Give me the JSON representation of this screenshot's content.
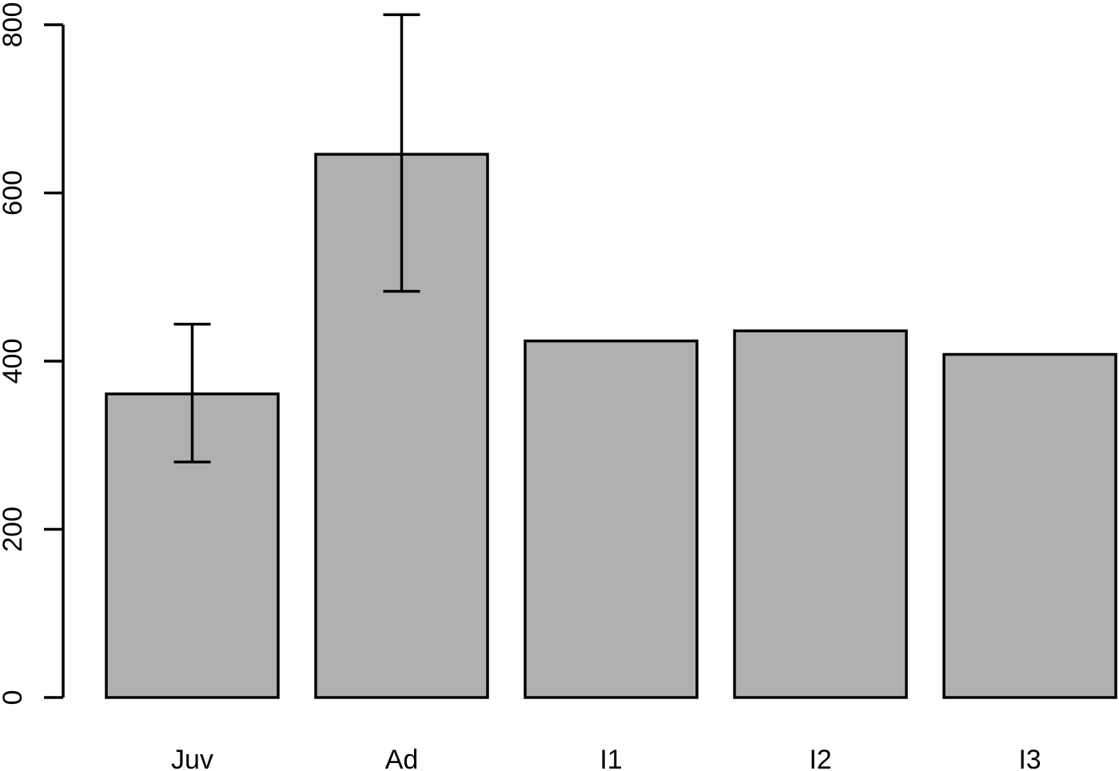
{
  "chart_data": {
    "type": "bar",
    "title": "",
    "xlabel": "",
    "ylabel": "",
    "categories": [
      "Juv",
      "Ad",
      "I1",
      "I2",
      "I3"
    ],
    "values": [
      361,
      646,
      424,
      436,
      408
    ],
    "error_bars": [
      {
        "category": "Juv",
        "lower": 280,
        "upper": 444
      },
      {
        "category": "Ad",
        "lower": 483,
        "upper": 812
      },
      null,
      null,
      null
    ],
    "ylim": [
      0,
      800
    ],
    "yticks": [
      "0",
      "200",
      "400",
      "600",
      "800"
    ],
    "grid": false,
    "legend": "none",
    "bar_color": "#b0b0b0",
    "edge_color": "#000000"
  }
}
